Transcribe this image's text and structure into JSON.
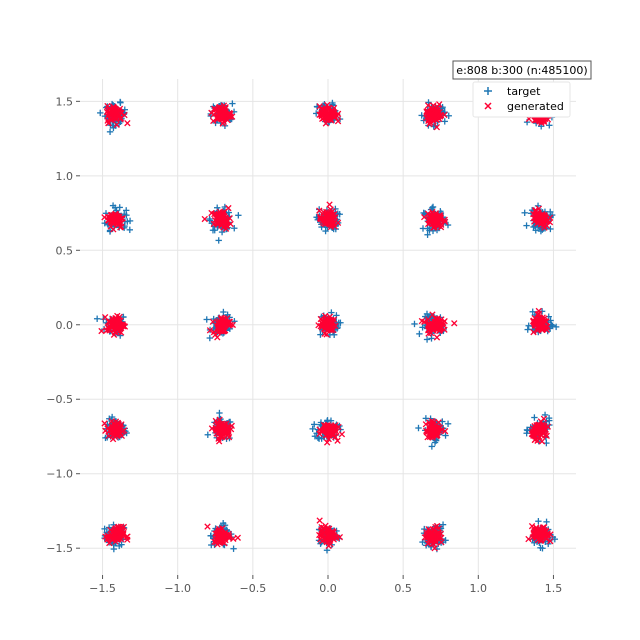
{
  "chart_data": {
    "type": "scatter",
    "title": "",
    "xlabel": "",
    "ylabel": "",
    "xlim": [
      -1.65,
      1.65
    ],
    "ylim": [
      -1.68,
      1.65
    ],
    "xticks": [
      -1.5,
      -1.0,
      -0.5,
      0.0,
      0.5,
      1.0,
      1.5
    ],
    "yticks": [
      -1.5,
      -1.0,
      -0.5,
      0.0,
      0.5,
      1.0,
      1.5
    ],
    "xtick_labels": [
      "−1.5",
      "−1.0",
      "−0.5",
      "0.0",
      "0.5",
      "1.0",
      "1.5"
    ],
    "ytick_labels": [
      "−1.5",
      "−1.0",
      "−0.5",
      "0.0",
      "0.5",
      "1.0",
      "1.5"
    ],
    "grid": true,
    "legend_position": "top-right",
    "annotation": "e:808 b:300 (n:485100)",
    "cluster_centers_x": [
      -1.414,
      -0.707,
      0.0,
      0.707,
      1.414
    ],
    "cluster_centers_y": [
      -1.414,
      -0.707,
      0.0,
      0.707,
      1.414
    ],
    "series": [
      {
        "name": "target",
        "marker": "+",
        "color": "#1f77b4",
        "cluster_spread": 0.035,
        "points_per_cluster": 60
      },
      {
        "name": "generated",
        "marker": "x",
        "color": "#ff0033",
        "cluster_spread": 0.028,
        "points_per_cluster": 60
      }
    ],
    "outliers": [
      {
        "series": "generated",
        "x": 0.84,
        "y": 0.01
      },
      {
        "series": "generated",
        "x": -0.82,
        "y": 0.71
      },
      {
        "series": "generated",
        "x": 0.74,
        "y": 1.48
      },
      {
        "series": "target",
        "x": -1.43,
        "y": 0.8
      },
      {
        "series": "generated",
        "x": -0.6,
        "y": -1.43
      },
      {
        "series": "generated",
        "x": 1.38,
        "y": 0.77
      }
    ]
  }
}
